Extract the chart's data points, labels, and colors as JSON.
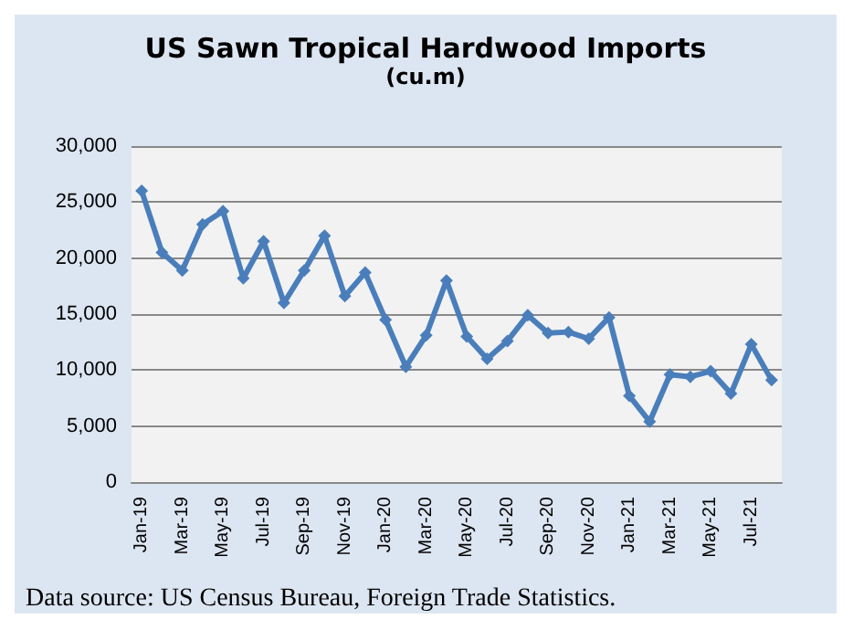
{
  "chart_data": {
    "type": "line",
    "title": "US Sawn Tropical Hardwood Imports",
    "subtitle": "(cu.m)",
    "categories": [
      "Jan-19",
      null,
      "Mar-19",
      null,
      "May-19",
      null,
      "Jul-19",
      null,
      "Sep-19",
      null,
      "Nov-19",
      null,
      "Jan-20",
      null,
      "Mar-20",
      null,
      "May-20",
      null,
      "Jul-20",
      null,
      "Sep-20",
      null,
      "Nov-20",
      null,
      "Jan-21",
      null,
      "Mar-21",
      null,
      "May-21",
      null,
      "Jul-21",
      null
    ],
    "series": [
      {
        "color": "#4a7ebb",
        "values": [
          26000,
          20500,
          18900,
          23000,
          24200,
          18200,
          21500,
          16000,
          18900,
          22000,
          16600,
          18700,
          14500,
          10300,
          13100,
          18000,
          13000,
          11000,
          12600,
          14900,
          13300,
          13400,
          12800,
          14700,
          7700,
          5400,
          9600,
          9400,
          9900,
          7900,
          12300,
          9100
        ]
      }
    ],
    "ylim": [
      0,
      30000
    ],
    "yticks": [
      0,
      {
        "value": 5000,
        "label": "5,000"
      },
      {
        "value": 10000,
        "label": "10,000"
      },
      {
        "value": 15000,
        "label": "15,000"
      },
      {
        "value": 20000,
        "label": "20,000"
      },
      {
        "value": 25000,
        "label": "25,000"
      },
      {
        "value": 30000,
        "label": "30,000"
      }
    ],
    "grid": "y",
    "marker": "diamond",
    "line_style": "solid",
    "annotations": [
      "Data source: US Census Bureau, Foreign Trade Statistics."
    ]
  }
}
